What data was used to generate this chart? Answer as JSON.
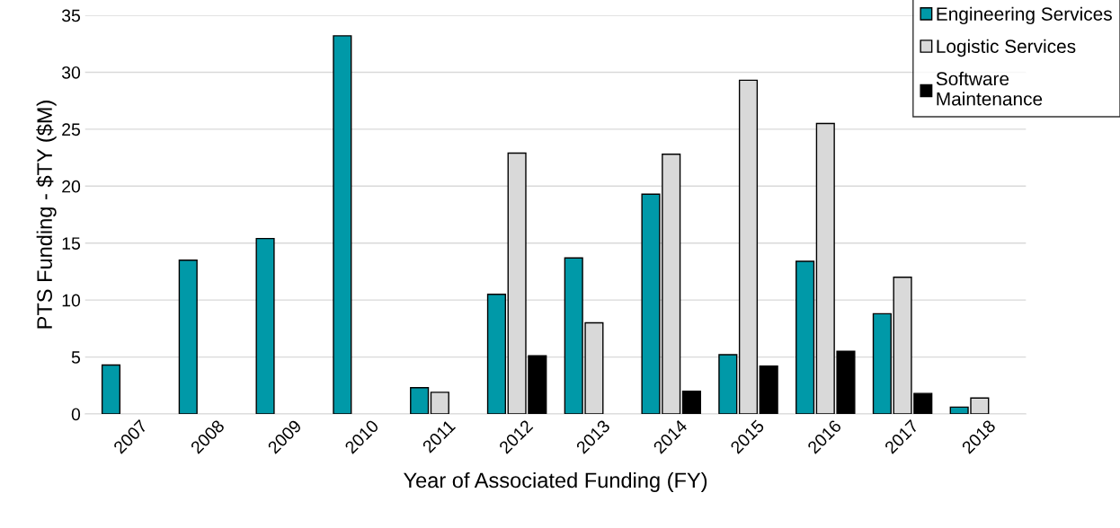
{
  "chart_data": {
    "type": "bar",
    "xlabel": "Year of Associated Funding (FY)",
    "ylabel": "PTS Funding - $TY ($M)",
    "categories": [
      "2007",
      "2008",
      "2009",
      "2010",
      "2011",
      "2012",
      "2013",
      "2014",
      "2015",
      "2016",
      "2017",
      "2018"
    ],
    "series": [
      {
        "name": "Engineering Services",
        "color": "#0099a8",
        "values": [
          4.3,
          13.5,
          15.4,
          33.2,
          2.3,
          10.5,
          13.7,
          19.3,
          5.2,
          13.4,
          8.8,
          0.6
        ]
      },
      {
        "name": "Logistic Services",
        "color": "#d9d9d9",
        "values": [
          null,
          null,
          null,
          null,
          1.9,
          22.9,
          8.0,
          22.8,
          29.3,
          25.5,
          12.0,
          1.4
        ]
      },
      {
        "name": "Software\nMaintenance",
        "color": "#000000",
        "values": [
          null,
          null,
          null,
          null,
          null,
          5.1,
          null,
          2.0,
          4.2,
          5.5,
          1.8,
          null
        ]
      }
    ],
    "ylim": [
      0,
      35
    ],
    "yticks": [
      0,
      5,
      10,
      15,
      20,
      25,
      30,
      35
    ],
    "grid": "y",
    "legend": "top right"
  }
}
